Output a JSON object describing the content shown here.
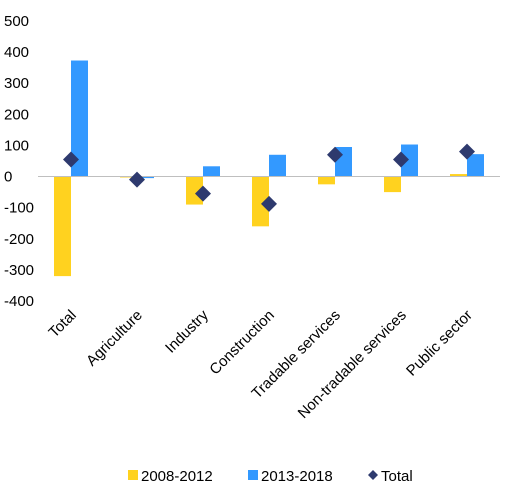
{
  "chart_data": {
    "type": "bar",
    "title": "",
    "xlabel": "",
    "ylabel": "",
    "ylim": [
      -400,
      500
    ],
    "yticks": [
      -400,
      -300,
      -200,
      -100,
      0,
      100,
      200,
      300,
      400,
      500
    ],
    "grid": false,
    "legend_position": "bottom",
    "categories": [
      "Total",
      "Agriculture",
      "Industry",
      "Construction",
      "Tradable services",
      "Non-tradable services",
      "Public sector"
    ],
    "series": [
      {
        "name": "2008-2012",
        "kind": "bar",
        "color": "#FFD21F",
        "values": [
          -320,
          -3,
          -90,
          -160,
          -25,
          -50,
          8
        ]
      },
      {
        "name": "2013-2018",
        "kind": "bar",
        "color": "#3399FF",
        "values": [
          373,
          -5,
          33,
          70,
          95,
          103,
          72
        ]
      },
      {
        "name": "Total",
        "kind": "marker",
        "marker": "diamond",
        "color": "#2E3A6E",
        "values": [
          55,
          -10,
          -55,
          -88,
          70,
          55,
          80
        ]
      }
    ]
  }
}
